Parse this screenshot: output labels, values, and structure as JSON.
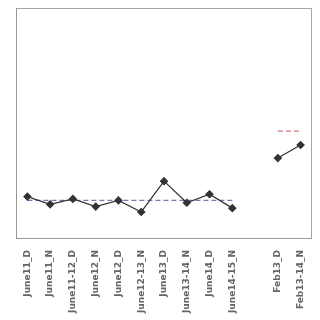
{
  "chart_data": {
    "type": "line",
    "categories": [
      "June11_D",
      "June11_N",
      "June11-12_D",
      "June12_N",
      "June12_D",
      "June12-13_N",
      "June13_D",
      "June13-14_N",
      "June14_D",
      "June14-15_N",
      null,
      "Feb13_D",
      "Feb13-14_N"
    ],
    "series": [
      {
        "color": "#333333",
        "marker": "diamond",
        "line_style": "solid",
        "values": [
          1.05,
          0.95,
          1.02,
          0.92,
          1.0,
          0.85,
          1.25,
          0.97,
          1.08,
          0.9,
          null,
          1.55,
          1.72
        ]
      },
      {
        "color": "#7777bb",
        "marker": "none",
        "line_style": "dashed",
        "values": [
          1.0,
          1.0,
          1.0,
          1.0,
          1.0,
          1.0,
          1.0,
          1.0,
          1.0,
          1.0,
          null,
          null,
          null
        ]
      },
      {
        "color": "#cc7777",
        "marker": "none",
        "line_style": "dashed",
        "values": [
          null,
          null,
          null,
          null,
          null,
          null,
          null,
          null,
          null,
          null,
          null,
          1.9,
          1.9
        ]
      }
    ],
    "ylim": [
      0.5,
      3.5
    ],
    "yticks": [],
    "grid": false,
    "tick_labels": "x"
  }
}
